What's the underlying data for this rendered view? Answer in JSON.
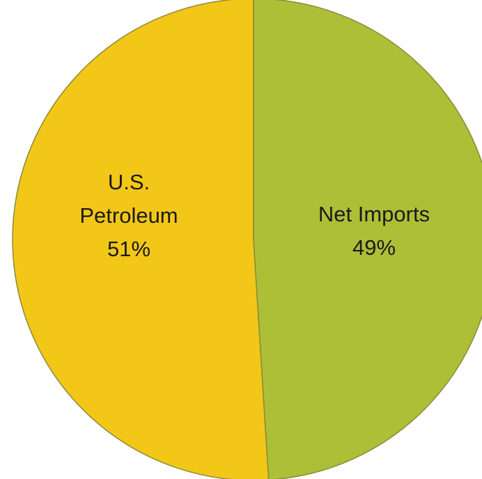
{
  "chart_data": {
    "type": "pie",
    "title": "",
    "slices": [
      {
        "label_lines": [
          "U.S.",
          "Petroleum"
        ],
        "value_label": "51%",
        "value": 51,
        "color": "#f2c718"
      },
      {
        "label_lines": [
          "Net Imports"
        ],
        "value_label": "49%",
        "value": 49,
        "color": "#adbf37"
      }
    ],
    "start_angle_deg": 0,
    "direction": "counterclockwise",
    "border_color": "#8a8a3a"
  }
}
